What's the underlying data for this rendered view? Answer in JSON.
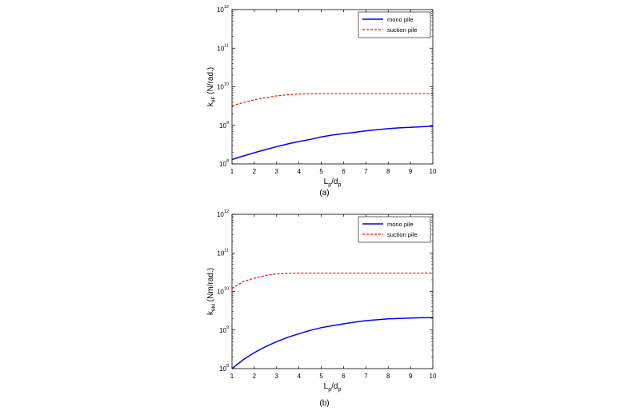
{
  "chart_data": [
    {
      "type": "line",
      "panel_label": "(a)",
      "title": "",
      "xlabel": {
        "main": "L",
        "sub": "p",
        "mid": "/d",
        "sub2": "p"
      },
      "ylabel": {
        "main": "k",
        "sub": "θF",
        "rest": " (N/rad.)"
      },
      "x": [
        1,
        1.5,
        2,
        2.5,
        3,
        3.5,
        4,
        4.5,
        5,
        5.5,
        6,
        6.5,
        7,
        7.5,
        8,
        8.5,
        9,
        9.5,
        10
      ],
      "xlim": [
        1,
        10
      ],
      "xticks": [
        "1",
        "2",
        "3",
        "4",
        "5",
        "6",
        "7",
        "8",
        "9",
        "10"
      ],
      "ylim": [
        100000000,
        1000000000000
      ],
      "yscale": "log",
      "yticks": [
        {
          "base": "10",
          "exp": "8",
          "value": 100000000
        },
        {
          "base": "10",
          "exp": "9",
          "value": 1000000000
        },
        {
          "base": "10",
          "exp": "10",
          "value": 10000000000
        },
        {
          "base": "10",
          "exp": "11",
          "value": 100000000000
        },
        {
          "base": "10",
          "exp": "12",
          "value": 1000000000000
        }
      ],
      "grid": false,
      "legend_position": "top-right",
      "series": [
        {
          "name": "mono pile",
          "color": "#0000ff",
          "dash": "solid",
          "values": [
            130000000,
            160000000,
            195000000,
            235000000,
            280000000,
            330000000,
            380000000,
            430000000,
            500000000,
            560000000,
            610000000,
            660000000,
            720000000,
            770000000,
            820000000,
            860000000,
            890000000,
            920000000,
            950000000
          ]
        },
        {
          "name": "suction pile",
          "color": "#ff0000",
          "dash": "dashed",
          "values": [
            3200000000,
            3900000000,
            4600000000,
            5200000000,
            5800000000,
            6200000000,
            6500000000,
            6600000000,
            6650000000,
            6650000000,
            6650000000,
            6650000000,
            6650000000,
            6650000000,
            6650000000,
            6650000000,
            6650000000,
            6650000000,
            6650000000
          ]
        }
      ]
    },
    {
      "type": "line",
      "panel_label": "(b)",
      "title": "",
      "xlabel": {
        "main": "L",
        "sub": "p",
        "mid": "/d",
        "sub2": "p"
      },
      "ylabel": {
        "main": "k",
        "sub": "θM",
        "rest": " (Nm/rad.)"
      },
      "x": [
        1,
        1.5,
        2,
        2.5,
        3,
        3.5,
        4,
        4.5,
        5,
        5.5,
        6,
        6.5,
        7,
        7.5,
        8,
        8.5,
        9,
        9.5,
        10
      ],
      "xlim": [
        1,
        10
      ],
      "xticks": [
        "1",
        "2",
        "3",
        "4",
        "5",
        "6",
        "7",
        "8",
        "9",
        "10"
      ],
      "ylim": [
        100000000,
        1000000000000
      ],
      "yscale": "log",
      "yticks": [
        {
          "base": "10",
          "exp": "8",
          "value": 100000000
        },
        {
          "base": "10",
          "exp": "9",
          "value": 1000000000
        },
        {
          "base": "10",
          "exp": "10",
          "value": 10000000000
        },
        {
          "base": "10",
          "exp": "11",
          "value": 100000000000
        },
        {
          "base": "10",
          "exp": "12",
          "value": 1000000000000
        }
      ],
      "grid": false,
      "legend_position": "top-right",
      "series": [
        {
          "name": "mono pile",
          "color": "#0000ff",
          "dash": "solid",
          "values": [
            100000000,
            170000000,
            260000000,
            370000000,
            500000000,
            650000000,
            800000000,
            980000000,
            1150000000,
            1300000000,
            1450000000,
            1600000000,
            1750000000,
            1850000000,
            1950000000,
            2000000000,
            2050000000,
            2080000000,
            2100000000
          ]
        },
        {
          "name": "suction pile",
          "color": "#ff0000",
          "dash": "dashed",
          "values": [
            12000000000,
            18000000000,
            22000000000,
            26000000000,
            28500000000,
            29500000000,
            30000000000,
            30000000000,
            30000000000,
            30000000000,
            30000000000,
            30000000000,
            30000000000,
            30000000000,
            30000000000,
            30000000000,
            30000000000,
            30000000000,
            30000000000
          ]
        }
      ]
    }
  ]
}
